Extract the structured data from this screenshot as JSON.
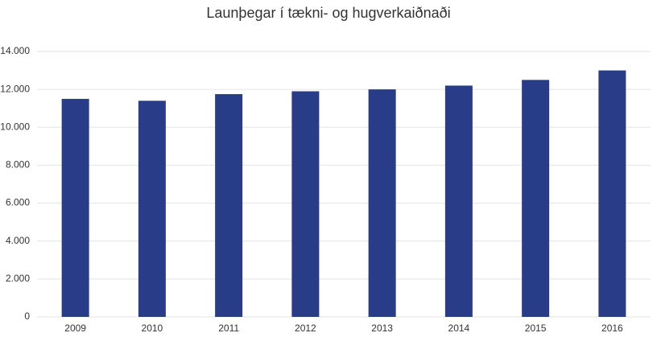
{
  "chart_data": {
    "type": "bar",
    "title": "Launþegar í tækni- og hugverkaiðnaði",
    "categories": [
      "2009",
      "2010",
      "2011",
      "2012",
      "2013",
      "2014",
      "2015",
      "2016"
    ],
    "values": [
      11500,
      11400,
      11750,
      11900,
      12000,
      12200,
      12500,
      13000
    ],
    "color": "#283c87",
    "ylim": [
      0,
      14000
    ],
    "yticks": [
      0,
      {
        "value": 2000,
        "label": "2.000"
      },
      {
        "value": 4000,
        "label": "4.000"
      },
      {
        "value": 6000,
        "label": "6.000"
      },
      {
        "value": 8000,
        "label": "8.000"
      },
      {
        "value": 10000,
        "label": "10.000"
      },
      {
        "value": 12000,
        "label": "12.000"
      },
      {
        "value": 14000,
        "label": "14.000"
      }
    ],
    "grid": true
  }
}
